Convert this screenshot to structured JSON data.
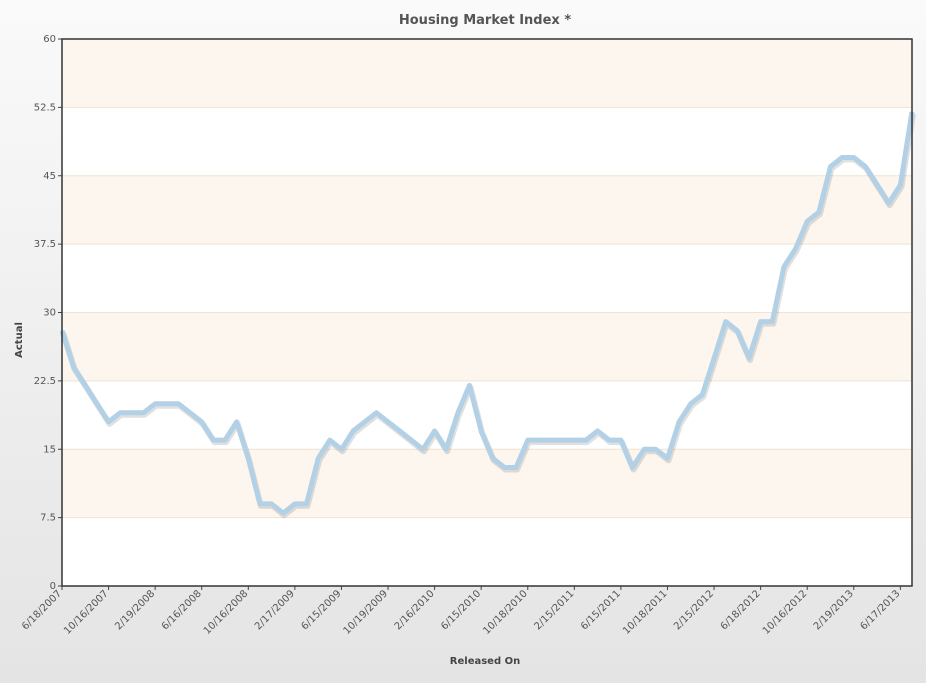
{
  "chart_data": {
    "type": "line",
    "title": "Housing Market Index *",
    "x_label": "Released On",
    "y_label": "Actual",
    "categories": [
      "6/18/2007",
      null,
      null,
      null,
      "10/16/2007",
      null,
      null,
      null,
      "2/19/2008",
      null,
      null,
      null,
      "6/16/2008",
      null,
      null,
      null,
      "10/16/2008",
      null,
      null,
      null,
      "2/17/2009",
      null,
      null,
      null,
      "6/15/2009",
      null,
      null,
      null,
      "10/19/2009",
      null,
      null,
      null,
      "2/16/2010",
      null,
      null,
      null,
      "6/15/2010",
      null,
      null,
      null,
      "10/18/2010",
      null,
      null,
      null,
      "2/15/2011",
      null,
      null,
      null,
      "6/15/2011",
      null,
      null,
      null,
      "10/18/2011",
      null,
      null,
      null,
      "2/15/2012",
      null,
      null,
      null,
      "6/18/2012",
      null,
      null,
      null,
      "10/16/2012",
      null,
      null,
      null,
      "2/19/2013",
      null,
      null,
      null,
      "6/17/2013",
      null
    ],
    "series": [
      {
        "name": "Actual",
        "color": "#b3d1e6",
        "values": [
          28,
          24,
          22,
          20,
          18,
          19,
          19,
          19,
          20,
          20,
          20,
          19,
          18,
          16,
          16,
          18,
          14,
          9,
          9,
          8,
          9,
          9,
          14,
          16,
          15,
          17,
          18,
          19,
          18,
          17,
          16,
          15,
          17,
          15,
          19,
          22,
          17,
          14,
          13,
          13,
          16,
          16,
          16,
          16,
          16,
          16,
          17,
          16,
          16,
          13,
          15,
          15,
          14,
          18,
          20,
          21,
          25,
          29,
          28,
          25,
          29,
          29,
          35,
          37,
          40,
          41,
          46,
          47,
          47,
          46,
          44,
          42,
          44,
          52
        ]
      }
    ],
    "ylim": [
      0,
      60
    ],
    "yticks": [
      0,
      7.5,
      15,
      22.5,
      30,
      37.5,
      45,
      52.5,
      60
    ],
    "grid": true,
    "band_color": "#fdf6ef"
  }
}
